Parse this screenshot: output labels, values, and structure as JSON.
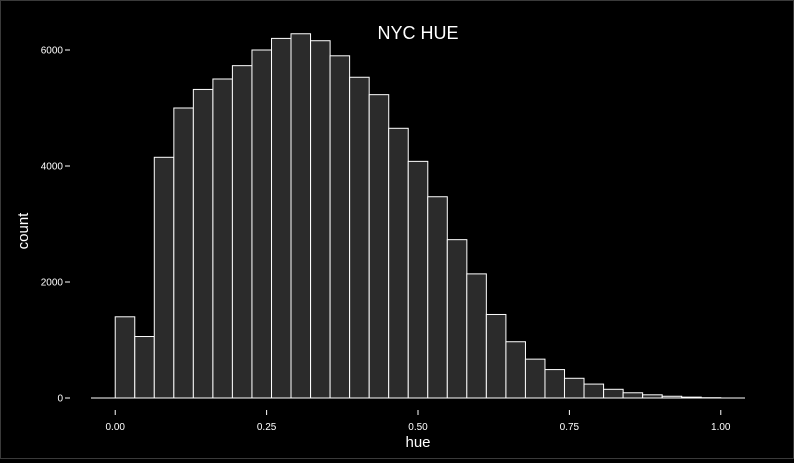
{
  "chart_data": {
    "type": "bar",
    "title": "NYC HUE",
    "xlabel": "hue",
    "ylabel": "count",
    "xlim": [
      -0.04,
      1.04
    ],
    "ylim": [
      0,
      6500
    ],
    "x_ticks": [
      0.0,
      0.25,
      0.5,
      0.75,
      1.0
    ],
    "x_tick_labels": [
      "0.00",
      "0.25",
      "0.50",
      "0.75",
      "1.00"
    ],
    "y_ticks": [
      0,
      2000,
      4000,
      6000
    ],
    "y_tick_labels": [
      "0",
      "2000",
      "4000",
      "6000"
    ],
    "bin_width": 0.03226,
    "bin_starts": [
      0.0,
      0.0323,
      0.0645,
      0.0968,
      0.129,
      0.1613,
      0.1935,
      0.2258,
      0.2581,
      0.2903,
      0.3226,
      0.3548,
      0.3871,
      0.4194,
      0.4516,
      0.4839,
      0.5161,
      0.5484,
      0.5806,
      0.6129,
      0.6452,
      0.6774,
      0.7097,
      0.7419,
      0.7742,
      0.8065,
      0.8387,
      0.871,
      0.9032,
      0.9355,
      0.9677
    ],
    "values": [
      1400,
      1060,
      4150,
      5000,
      5320,
      5500,
      5730,
      6000,
      6200,
      6280,
      6160,
      5900,
      5530,
      5230,
      4650,
      4080,
      3470,
      2730,
      2140,
      1440,
      970,
      670,
      490,
      340,
      240,
      150,
      90,
      55,
      30,
      15,
      5
    ],
    "grid": false,
    "legend": "none",
    "colors": {
      "background": "#000000",
      "bar_fill": "#2b2b2b",
      "bar_stroke": "#ffffff",
      "text": "#ffffff",
      "axis_line": "#ffffff"
    }
  }
}
